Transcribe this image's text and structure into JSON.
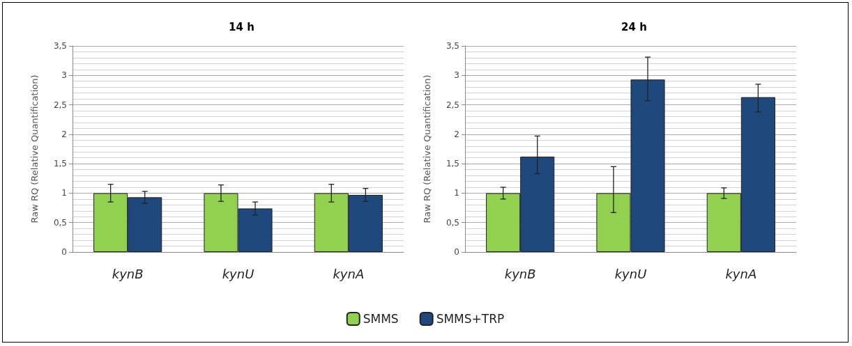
{
  "chart_data": [
    {
      "type": "bar",
      "title": "14 h",
      "ylabel": "Raw RQ (Relative Quantification)",
      "categories": [
        "kynB",
        "kynU",
        "kynA"
      ],
      "series": [
        {
          "name": "SMMS",
          "color": "#92d050",
          "values": [
            1,
            1,
            1
          ],
          "errors": [
            0.15,
            0.14,
            0.15
          ]
        },
        {
          "name": "SMMS+TRP",
          "color": "#1f497d",
          "values": [
            0.93,
            0.74,
            0.97
          ],
          "errors": [
            0.1,
            0.11,
            0.11
          ]
        }
      ],
      "ylim": [
        0,
        3.5
      ],
      "yticks": [
        0,
        {
          "value": 0.5,
          "label": "0,5"
        },
        1,
        {
          "value": 1.5,
          "label": "1,5"
        },
        2,
        {
          "value": 2.5,
          "label": "2,5"
        },
        3,
        {
          "value": 3.5,
          "label": "3,5"
        }
      ],
      "grid": "y",
      "legend": "bottom"
    },
    {
      "type": "bar",
      "title": "24 h",
      "ylabel": "Raw RQ (Relative Quantification)",
      "categories": [
        "kynB",
        "kynU",
        "kynA"
      ],
      "series": [
        {
          "name": "SMMS",
          "color": "#92d050",
          "values": [
            1,
            1,
            1
          ],
          "errors": [
            0.1,
            [
              0.67,
              1.45
            ],
            0.09
          ]
        },
        {
          "name": "SMMS+TRP",
          "color": "#1f497d",
          "values": [
            1.62,
            2.93,
            2.63
          ],
          "errors": [
            [
              1.33,
              1.97
            ],
            [
              2.57,
              3.31
            ],
            [
              2.38,
              2.85
            ]
          ]
        }
      ],
      "ylim": [
        0,
        3.5
      ],
      "yticks": [
        0,
        {
          "value": 0.5,
          "label": "0,5"
        },
        1,
        {
          "value": 1.5,
          "label": "1,5"
        },
        2,
        {
          "value": 2.5,
          "label": "2,5"
        },
        3,
        {
          "value": 3.5,
          "label": "3,5"
        }
      ],
      "grid": "y",
      "legend": "bottom"
    }
  ]
}
